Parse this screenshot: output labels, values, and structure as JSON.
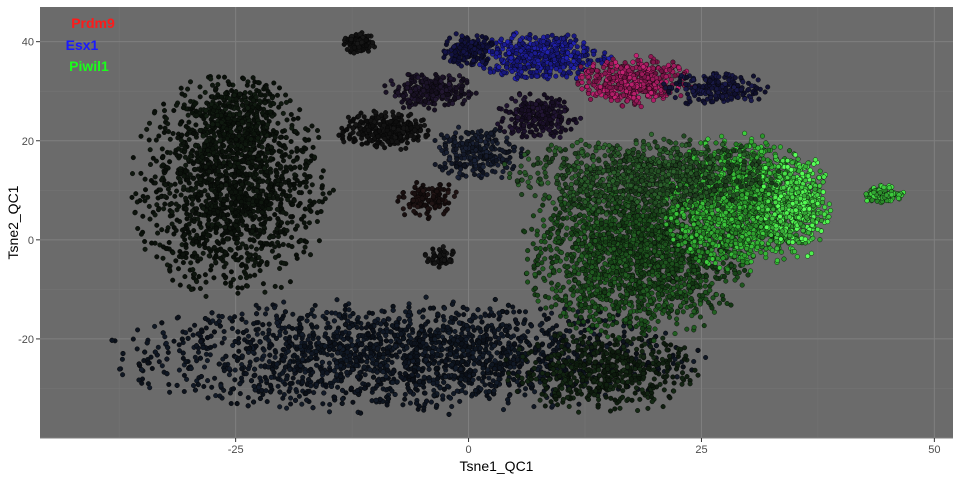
{
  "chart_data": {
    "type": "scatter",
    "title": "",
    "xlabel": "Tsne1_QC1",
    "ylabel": "Tsne2_QC1",
    "xlim": [
      -46,
      52
    ],
    "ylim": [
      -40,
      47
    ],
    "x_ticks": [
      -25,
      0,
      25,
      50
    ],
    "y_ticks": [
      -20,
      0,
      20,
      40
    ],
    "x_tick_labels": [
      "-25",
      "0",
      "25",
      "50"
    ],
    "y_tick_labels": [
      "-20",
      "0",
      "20",
      "40"
    ],
    "grid": true,
    "panel_background": "#6b6b6b",
    "legend_position": "top-left",
    "legend": [
      {
        "label": "Prdm9",
        "color": "#ff1a1a"
      },
      {
        "label": "Esx1",
        "color": "#1a1aff"
      },
      {
        "label": "Piwil1",
        "color": "#1aff1a"
      }
    ],
    "clusters": [
      {
        "region": "left-arm",
        "x": [
          -36,
          -15
        ],
        "y": [
          -12,
          33
        ],
        "count": 1500,
        "color": "#0c130c",
        "shape": "blob"
      },
      {
        "region": "left-upper",
        "x": [
          -31,
          -19
        ],
        "y": [
          13,
          34
        ],
        "count": 350,
        "color": "#0d160d",
        "shape": "blob"
      },
      {
        "region": "bottom-band",
        "x": [
          -38,
          24
        ],
        "y": [
          -35,
          -12
        ],
        "count": 2600,
        "color": "#0e1520",
        "shape": "blob"
      },
      {
        "region": "bottom-right",
        "x": [
          4,
          25
        ],
        "y": [
          -35,
          -18
        ],
        "count": 500,
        "color": "#102010",
        "shape": "blob"
      },
      {
        "region": "center-right",
        "x": [
          6,
          30
        ],
        "y": [
          -20,
          14
        ],
        "count": 2000,
        "color": "#1a4a1a",
        "shape": "blob"
      },
      {
        "region": "right-green",
        "x": [
          21,
          37
        ],
        "y": [
          -6,
          21
        ],
        "count": 1600,
        "color": "#2fa02f",
        "shape": "blob"
      },
      {
        "region": "right-edge",
        "x": [
          31,
          39
        ],
        "y": [
          -4,
          18
        ],
        "count": 450,
        "color": "#46d646",
        "shape": "blob"
      },
      {
        "region": "far-right-island",
        "x": [
          42.5,
          47
        ],
        "y": [
          7,
          11
        ],
        "count": 110,
        "color": "#37b637",
        "shape": "blob"
      },
      {
        "region": "top-blue",
        "x": [
          1,
          15
        ],
        "y": [
          32,
          42
        ],
        "count": 480,
        "color": "#1a1a8a",
        "shape": "blob"
      },
      {
        "region": "top-magenta",
        "x": [
          11,
          24
        ],
        "y": [
          27,
          37
        ],
        "count": 450,
        "color": "#9a1a5a",
        "shape": "blob"
      },
      {
        "region": "top-right-tail",
        "x": [
          21,
          32
        ],
        "y": [
          27,
          34
        ],
        "count": 220,
        "color": "#14143a",
        "shape": "blob"
      },
      {
        "region": "top-left-small",
        "x": [
          -13.5,
          -10
        ],
        "y": [
          37.5,
          42
        ],
        "count": 110,
        "color": "#121212",
        "shape": "blob"
      },
      {
        "region": "top-mid-left",
        "x": [
          -3,
          3
        ],
        "y": [
          35,
          42
        ],
        "count": 160,
        "color": "#10103a",
        "shape": "blob"
      },
      {
        "region": "mid-cluster-a",
        "x": [
          -9,
          1
        ],
        "y": [
          26,
          34
        ],
        "count": 260,
        "color": "#1a1226",
        "shape": "blob"
      },
      {
        "region": "mid-cluster-b",
        "x": [
          -14,
          -4
        ],
        "y": [
          18,
          26
        ],
        "count": 300,
        "color": "#101010",
        "shape": "blob"
      },
      {
        "region": "mid-cluster-c",
        "x": [
          -4,
          6
        ],
        "y": [
          12,
          23
        ],
        "count": 260,
        "color": "#141a2a",
        "shape": "blob"
      },
      {
        "region": "mid-cluster-d",
        "x": [
          3,
          12
        ],
        "y": [
          20,
          30
        ],
        "count": 230,
        "color": "#1a1028",
        "shape": "blob"
      },
      {
        "region": "mid-cluster-e",
        "x": [
          -8,
          -1
        ],
        "y": [
          4,
          12
        ],
        "count": 120,
        "color": "#1a1010",
        "shape": "blob"
      },
      {
        "region": "mid-cluster-f",
        "x": [
          -5,
          -1
        ],
        "y": [
          -6,
          -1
        ],
        "count": 50,
        "color": "#121212",
        "shape": "blob"
      },
      {
        "region": "green-upper-band",
        "x": [
          4,
          33
        ],
        "y": [
          5,
          21
        ],
        "count": 900,
        "color": "#234e23",
        "shape": "blob"
      }
    ]
  }
}
